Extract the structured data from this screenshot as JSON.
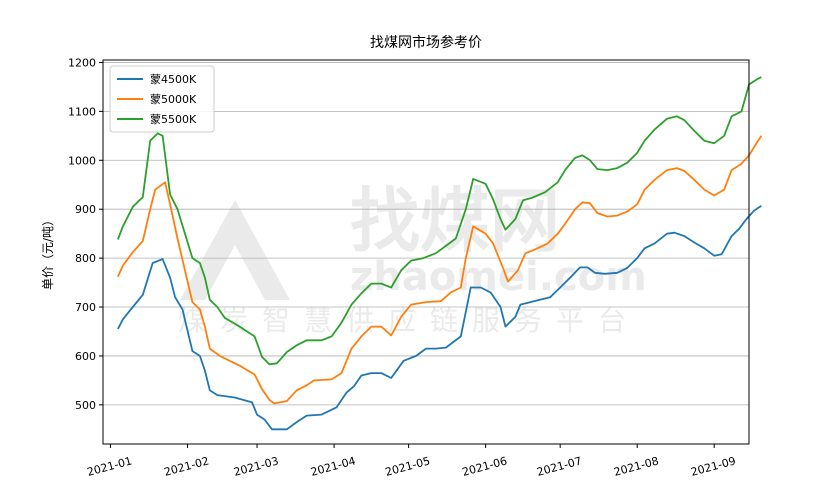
{
  "chart_data": {
    "type": "line",
    "title": "找煤网市场参考价",
    "xlabel": "",
    "ylabel": "单价（元/吨）",
    "ylim": [
      420,
      1205
    ],
    "yticks": [
      500,
      600,
      700,
      800,
      900,
      1000,
      1100,
      1200
    ],
    "xlim": [
      "2020-12-29",
      "2021-09-15"
    ],
    "xticks": [
      "2021-01",
      "2021-02",
      "2021-03",
      "2021-04",
      "2021-05",
      "2021-06",
      "2021-07",
      "2021-08",
      "2021-09"
    ],
    "grid": "y",
    "legend_placement": "top-left",
    "watermark": {
      "main": "找煤网",
      "domain": "zhaomei.com",
      "tagline": "煤炭智慧供应链服务平台"
    },
    "series": [
      {
        "name": "蒙4500K",
        "color": "#1f77b4",
        "points": [
          [
            "2021-01-04",
            655
          ],
          [
            "2021-01-06",
            675
          ],
          [
            "2021-01-10",
            700
          ],
          [
            "2021-01-14",
            725
          ],
          [
            "2021-01-18",
            790
          ],
          [
            "2021-01-22",
            798
          ],
          [
            "2021-01-25",
            760
          ],
          [
            "2021-01-27",
            720
          ],
          [
            "2021-01-30",
            695
          ],
          [
            "2021-02-03",
            610
          ],
          [
            "2021-02-06",
            600
          ],
          [
            "2021-02-08",
            570
          ],
          [
            "2021-02-10",
            530
          ],
          [
            "2021-02-13",
            520
          ],
          [
            "2021-02-20",
            515
          ],
          [
            "2021-02-27",
            505
          ],
          [
            "2021-03-01",
            480
          ],
          [
            "2021-03-04",
            470
          ],
          [
            "2021-03-07",
            450
          ],
          [
            "2021-03-13",
            450
          ],
          [
            "2021-03-17",
            465
          ],
          [
            "2021-03-21",
            478
          ],
          [
            "2021-03-27",
            480
          ],
          [
            "2021-04-02",
            495
          ],
          [
            "2021-04-06",
            525
          ],
          [
            "2021-04-09",
            538
          ],
          [
            "2021-04-12",
            560
          ],
          [
            "2021-04-16",
            565
          ],
          [
            "2021-04-20",
            565
          ],
          [
            "2021-04-24",
            555
          ],
          [
            "2021-04-29",
            590
          ],
          [
            "2021-05-04",
            600
          ],
          [
            "2021-05-08",
            615
          ],
          [
            "2021-05-12",
            615
          ],
          [
            "2021-05-16",
            617
          ],
          [
            "2021-05-22",
            640
          ],
          [
            "2021-05-24",
            690
          ],
          [
            "2021-05-26",
            740
          ],
          [
            "2021-05-30",
            740
          ],
          [
            "2021-06-03",
            730
          ],
          [
            "2021-06-07",
            700
          ],
          [
            "2021-06-09",
            660
          ],
          [
            "2021-06-13",
            680
          ],
          [
            "2021-06-15",
            705
          ],
          [
            "2021-06-19",
            710
          ],
          [
            "2021-06-22",
            714
          ],
          [
            "2021-06-27",
            720
          ],
          [
            "2021-07-01",
            740
          ],
          [
            "2021-07-05",
            760
          ],
          [
            "2021-07-09",
            781
          ],
          [
            "2021-07-12",
            781
          ],
          [
            "2021-07-15",
            770
          ],
          [
            "2021-07-19",
            768
          ],
          [
            "2021-07-24",
            770
          ],
          [
            "2021-07-28",
            780
          ],
          [
            "2021-08-01",
            800
          ],
          [
            "2021-08-04",
            820
          ],
          [
            "2021-08-08",
            830
          ],
          [
            "2021-08-13",
            850
          ],
          [
            "2021-08-16",
            852
          ],
          [
            "2021-08-20",
            845
          ],
          [
            "2021-08-24",
            832
          ],
          [
            "2021-08-28",
            820
          ],
          [
            "2021-09-01",
            805
          ],
          [
            "2021-09-04",
            808
          ],
          [
            "2021-09-08",
            845
          ],
          [
            "2021-09-11",
            860
          ],
          [
            "2021-09-14",
            880
          ],
          [
            "2021-09-17",
            897
          ],
          [
            "2021-09-20",
            907
          ]
        ]
      },
      {
        "name": "蒙5000K",
        "color": "#ff7f0e",
        "points": [
          [
            "2021-01-04",
            762
          ],
          [
            "2021-01-06",
            785
          ],
          [
            "2021-01-10",
            812
          ],
          [
            "2021-01-14",
            835
          ],
          [
            "2021-01-17",
            900
          ],
          [
            "2021-01-19",
            940
          ],
          [
            "2021-01-23",
            955
          ],
          [
            "2021-01-25",
            910
          ],
          [
            "2021-01-28",
            840
          ],
          [
            "2021-02-03",
            710
          ],
          [
            "2021-02-06",
            695
          ],
          [
            "2021-02-08",
            660
          ],
          [
            "2021-02-10",
            615
          ],
          [
            "2021-02-14",
            600
          ],
          [
            "2021-02-22",
            580
          ],
          [
            "2021-02-28",
            562
          ],
          [
            "2021-03-03",
            532
          ],
          [
            "2021-03-06",
            510
          ],
          [
            "2021-03-08",
            503
          ],
          [
            "2021-03-13",
            508
          ],
          [
            "2021-03-17",
            530
          ],
          [
            "2021-03-21",
            540
          ],
          [
            "2021-03-24",
            550
          ],
          [
            "2021-03-31",
            552
          ],
          [
            "2021-04-04",
            565
          ],
          [
            "2021-04-08",
            615
          ],
          [
            "2021-04-12",
            640
          ],
          [
            "2021-04-16",
            660
          ],
          [
            "2021-04-20",
            660
          ],
          [
            "2021-04-24",
            642
          ],
          [
            "2021-04-28",
            680
          ],
          [
            "2021-05-02",
            705
          ],
          [
            "2021-05-08",
            710
          ],
          [
            "2021-05-14",
            712
          ],
          [
            "2021-05-18",
            730
          ],
          [
            "2021-05-22",
            740
          ],
          [
            "2021-05-24",
            800
          ],
          [
            "2021-05-27",
            865
          ],
          [
            "2021-06-01",
            850
          ],
          [
            "2021-06-04",
            830
          ],
          [
            "2021-06-08",
            780
          ],
          [
            "2021-06-10",
            752
          ],
          [
            "2021-06-14",
            775
          ],
          [
            "2021-06-17",
            810
          ],
          [
            "2021-06-21",
            818
          ],
          [
            "2021-06-26",
            830
          ],
          [
            "2021-06-30",
            850
          ],
          [
            "2021-07-03",
            870
          ],
          [
            "2021-07-07",
            900
          ],
          [
            "2021-07-10",
            914
          ],
          [
            "2021-07-13",
            912
          ],
          [
            "2021-07-16",
            892
          ],
          [
            "2021-07-20",
            885
          ],
          [
            "2021-07-24",
            887
          ],
          [
            "2021-07-28",
            895
          ],
          [
            "2021-08-01",
            910
          ],
          [
            "2021-08-04",
            940
          ],
          [
            "2021-08-08",
            960
          ],
          [
            "2021-08-13",
            980
          ],
          [
            "2021-08-17",
            984
          ],
          [
            "2021-08-20",
            978
          ],
          [
            "2021-08-24",
            960
          ],
          [
            "2021-08-28",
            940
          ],
          [
            "2021-09-01",
            928
          ],
          [
            "2021-09-05",
            940
          ],
          [
            "2021-09-08",
            980
          ],
          [
            "2021-09-12",
            993
          ],
          [
            "2021-09-15",
            1010
          ],
          [
            "2021-09-18",
            1035
          ],
          [
            "2021-09-20",
            1050
          ]
        ]
      },
      {
        "name": "蒙5500K",
        "color": "#2ca02c",
        "points": [
          [
            "2021-01-04",
            838
          ],
          [
            "2021-01-06",
            865
          ],
          [
            "2021-01-10",
            905
          ],
          [
            "2021-01-14",
            925
          ],
          [
            "2021-01-17",
            1040
          ],
          [
            "2021-01-20",
            1055
          ],
          [
            "2021-01-22",
            1050
          ],
          [
            "2021-01-25",
            930
          ],
          [
            "2021-01-28",
            900
          ],
          [
            "2021-02-03",
            800
          ],
          [
            "2021-02-06",
            790
          ],
          [
            "2021-02-08",
            760
          ],
          [
            "2021-02-10",
            715
          ],
          [
            "2021-02-13",
            700
          ],
          [
            "2021-02-16",
            678
          ],
          [
            "2021-02-22",
            660
          ],
          [
            "2021-02-28",
            640
          ],
          [
            "2021-03-03",
            598
          ],
          [
            "2021-03-06",
            583
          ],
          [
            "2021-03-09",
            585
          ],
          [
            "2021-03-13",
            608
          ],
          [
            "2021-03-17",
            622
          ],
          [
            "2021-03-21",
            632
          ],
          [
            "2021-03-27",
            632
          ],
          [
            "2021-03-31",
            640
          ],
          [
            "2021-04-04",
            668
          ],
          [
            "2021-04-08",
            705
          ],
          [
            "2021-04-12",
            728
          ],
          [
            "2021-04-16",
            748
          ],
          [
            "2021-04-20",
            748
          ],
          [
            "2021-04-24",
            740
          ],
          [
            "2021-04-28",
            775
          ],
          [
            "2021-05-02",
            795
          ],
          [
            "2021-05-07",
            800
          ],
          [
            "2021-05-12",
            810
          ],
          [
            "2021-05-16",
            825
          ],
          [
            "2021-05-20",
            840
          ],
          [
            "2021-05-24",
            900
          ],
          [
            "2021-05-27",
            962
          ],
          [
            "2021-06-01",
            952
          ],
          [
            "2021-06-04",
            920
          ],
          [
            "2021-06-07",
            880
          ],
          [
            "2021-06-09",
            858
          ],
          [
            "2021-06-13",
            880
          ],
          [
            "2021-06-16",
            918
          ],
          [
            "2021-06-20",
            924
          ],
          [
            "2021-06-25",
            935
          ],
          [
            "2021-06-30",
            955
          ],
          [
            "2021-07-03",
            980
          ],
          [
            "2021-07-07",
            1005
          ],
          [
            "2021-07-10",
            1010
          ],
          [
            "2021-07-13",
            1000
          ],
          [
            "2021-07-16",
            982
          ],
          [
            "2021-07-20",
            980
          ],
          [
            "2021-07-24",
            984
          ],
          [
            "2021-07-28",
            995
          ],
          [
            "2021-08-01",
            1015
          ],
          [
            "2021-08-04",
            1040
          ],
          [
            "2021-08-08",
            1063
          ],
          [
            "2021-08-13",
            1085
          ],
          [
            "2021-08-17",
            1090
          ],
          [
            "2021-08-20",
            1082
          ],
          [
            "2021-08-24",
            1060
          ],
          [
            "2021-08-28",
            1040
          ],
          [
            "2021-09-01",
            1035
          ],
          [
            "2021-09-05",
            1050
          ],
          [
            "2021-09-08",
            1090
          ],
          [
            "2021-09-12",
            1100
          ],
          [
            "2021-09-15",
            1155
          ],
          [
            "2021-09-18",
            1165
          ],
          [
            "2021-09-20",
            1170
          ]
        ]
      }
    ]
  }
}
